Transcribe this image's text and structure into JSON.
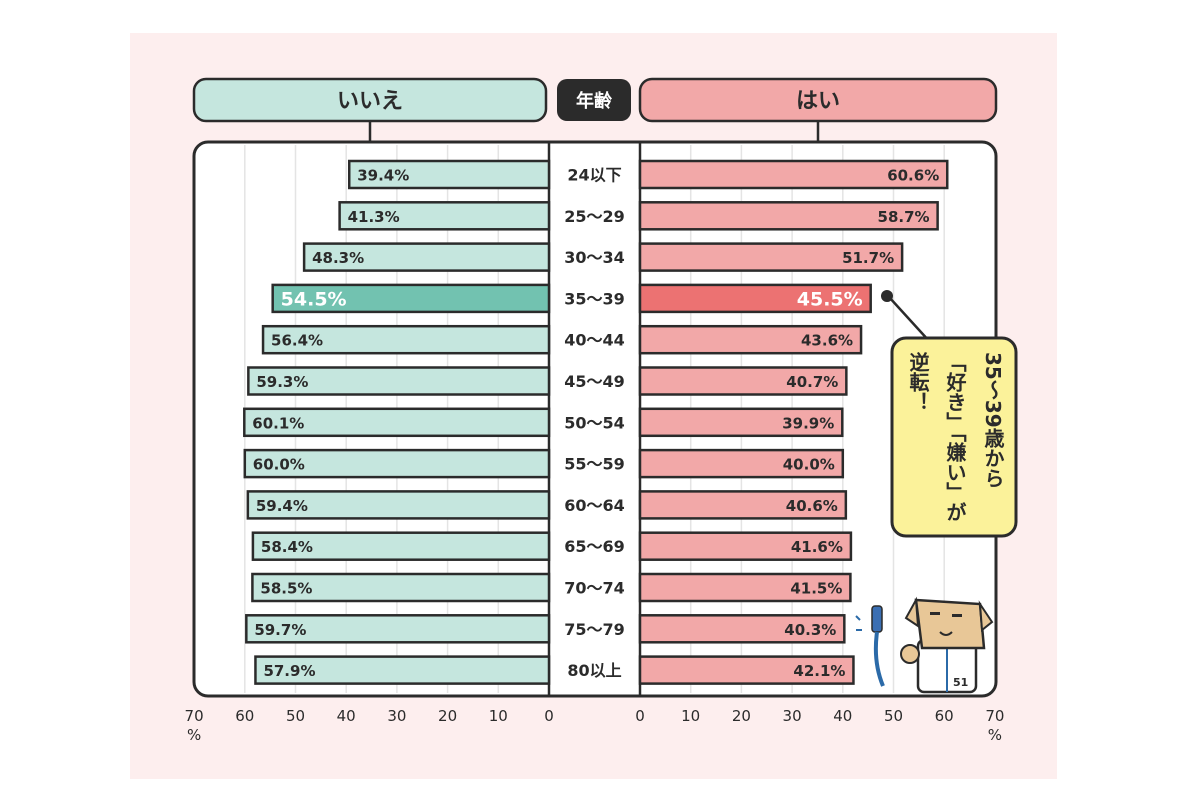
{
  "chart_data": {
    "type": "bar",
    "left_header": "いいえ",
    "center_header": "年齢",
    "right_header": "はい",
    "categories": [
      "24以下",
      "25〜29",
      "30〜34",
      "35〜39",
      "40〜44",
      "45〜49",
      "50〜54",
      "55〜59",
      "60〜64",
      "65〜69",
      "70〜74",
      "75〜79",
      "80以上"
    ],
    "series": [
      {
        "name": "いいえ",
        "values": [
          39.4,
          41.3,
          48.3,
          54.5,
          56.4,
          59.3,
          60.1,
          60.0,
          59.4,
          58.4,
          58.5,
          59.7,
          57.9
        ],
        "labels": [
          "39.4%",
          "41.3%",
          "48.3%",
          "54.5%",
          "56.4%",
          "59.3%",
          "60.1%",
          "60.0%",
          "59.4%",
          "58.4%",
          "58.5%",
          "59.7%",
          "57.9%"
        ]
      },
      {
        "name": "はい",
        "values": [
          60.6,
          58.7,
          51.7,
          45.5,
          43.6,
          40.7,
          39.9,
          40.0,
          40.6,
          41.6,
          41.5,
          40.3,
          42.1
        ],
        "labels": [
          "60.6%",
          "58.7%",
          "51.7%",
          "45.5%",
          "43.6%",
          "40.7%",
          "39.9%",
          "40.0%",
          "40.6%",
          "41.6%",
          "41.5%",
          "40.3%",
          "42.1%"
        ]
      }
    ],
    "highlight_index": 3,
    "xlim": [
      0,
      70
    ],
    "ticks": [
      "70",
      "60",
      "50",
      "40",
      "30",
      "20",
      "10",
      "0"
    ],
    "ticks_right": [
      "0",
      "10",
      "20",
      "30",
      "40",
      "50",
      "60",
      "70"
    ],
    "unit_label": "%",
    "grid": true,
    "annotation_lines": [
      "35〜39歳から",
      "「好き」「嫌い」が",
      "逆転！"
    ]
  },
  "colors": {
    "background": "#fdeeee",
    "no_bar": "#c5e6de",
    "no_bar_highlight": "#72c2b0",
    "yes_bar": "#f2a8a8",
    "yes_bar_highlight": "#ec7272",
    "header_no": "#c5e6de",
    "header_yes": "#f2a8a8",
    "annotation_bg": "#fbf29a",
    "outline": "#2b2b2b"
  },
  "icons": {
    "mascot": "mascot-character-icon"
  }
}
